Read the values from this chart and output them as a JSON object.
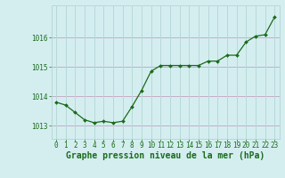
{
  "x": [
    0,
    1,
    2,
    3,
    4,
    5,
    6,
    7,
    8,
    9,
    10,
    11,
    12,
    13,
    14,
    15,
    16,
    17,
    18,
    19,
    20,
    21,
    22,
    23
  ],
  "y": [
    1013.8,
    1013.7,
    1013.45,
    1013.2,
    1013.1,
    1013.15,
    1013.1,
    1013.15,
    1013.65,
    1014.2,
    1014.85,
    1015.05,
    1015.05,
    1015.05,
    1015.05,
    1015.05,
    1015.2,
    1015.2,
    1015.4,
    1015.4,
    1015.85,
    1016.05,
    1016.1,
    1016.7
  ],
  "line_color": "#1a6b1a",
  "marker_color": "#1a6b1a",
  "bg_color": "#d4eef0",
  "grid_color_h": "#c8aac8",
  "grid_color_v": "#b8d8d8",
  "xlabel": "Graphe pression niveau de la mer (hPa)",
  "xlabel_color": "#1a6b1a",
  "ylabel_ticks": [
    1013,
    1014,
    1015,
    1016
  ],
  "ylim": [
    1012.55,
    1017.1
  ],
  "xlim": [
    -0.5,
    23.5
  ],
  "xtick_labels": [
    "0",
    "1",
    "2",
    "3",
    "4",
    "5",
    "6",
    "7",
    "8",
    "9",
    "10",
    "11",
    "12",
    "13",
    "14",
    "15",
    "16",
    "17",
    "18",
    "19",
    "20",
    "21",
    "22",
    "23"
  ],
  "tick_fontsize": 5.5,
  "xlabel_fontsize": 7
}
